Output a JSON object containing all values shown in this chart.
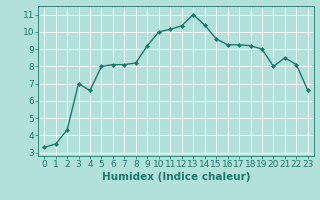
{
  "x": [
    0,
    1,
    2,
    3,
    4,
    5,
    6,
    7,
    8,
    9,
    10,
    11,
    12,
    13,
    14,
    15,
    16,
    17,
    18,
    19,
    20,
    21,
    22,
    23
  ],
  "y": [
    3.3,
    3.5,
    4.3,
    7.0,
    6.6,
    8.0,
    8.1,
    8.1,
    8.2,
    9.2,
    10.0,
    10.15,
    10.35,
    11.0,
    10.4,
    9.6,
    9.25,
    9.25,
    9.2,
    9.0,
    8.0,
    8.5,
    8.1,
    6.6
  ],
  "line_color": "#1a7a6e",
  "marker": "D",
  "marker_size": 2.0,
  "bg_color": "#b2e0da",
  "grid_color": "#ffffff",
  "xlabel": "Humidex (Indice chaleur)",
  "xlim": [
    -0.5,
    23.5
  ],
  "ylim": [
    2.8,
    11.5
  ],
  "xticks": [
    0,
    1,
    2,
    3,
    4,
    5,
    6,
    7,
    8,
    9,
    10,
    11,
    12,
    13,
    14,
    15,
    16,
    17,
    18,
    19,
    20,
    21,
    22,
    23
  ],
  "yticks": [
    3,
    4,
    5,
    6,
    7,
    8,
    9,
    10,
    11
  ],
  "tick_color": "#1a7a6e",
  "label_color": "#1a7a6e",
  "xlabel_fontsize": 7.5,
  "tick_fontsize": 6.5,
  "linewidth": 1.0
}
